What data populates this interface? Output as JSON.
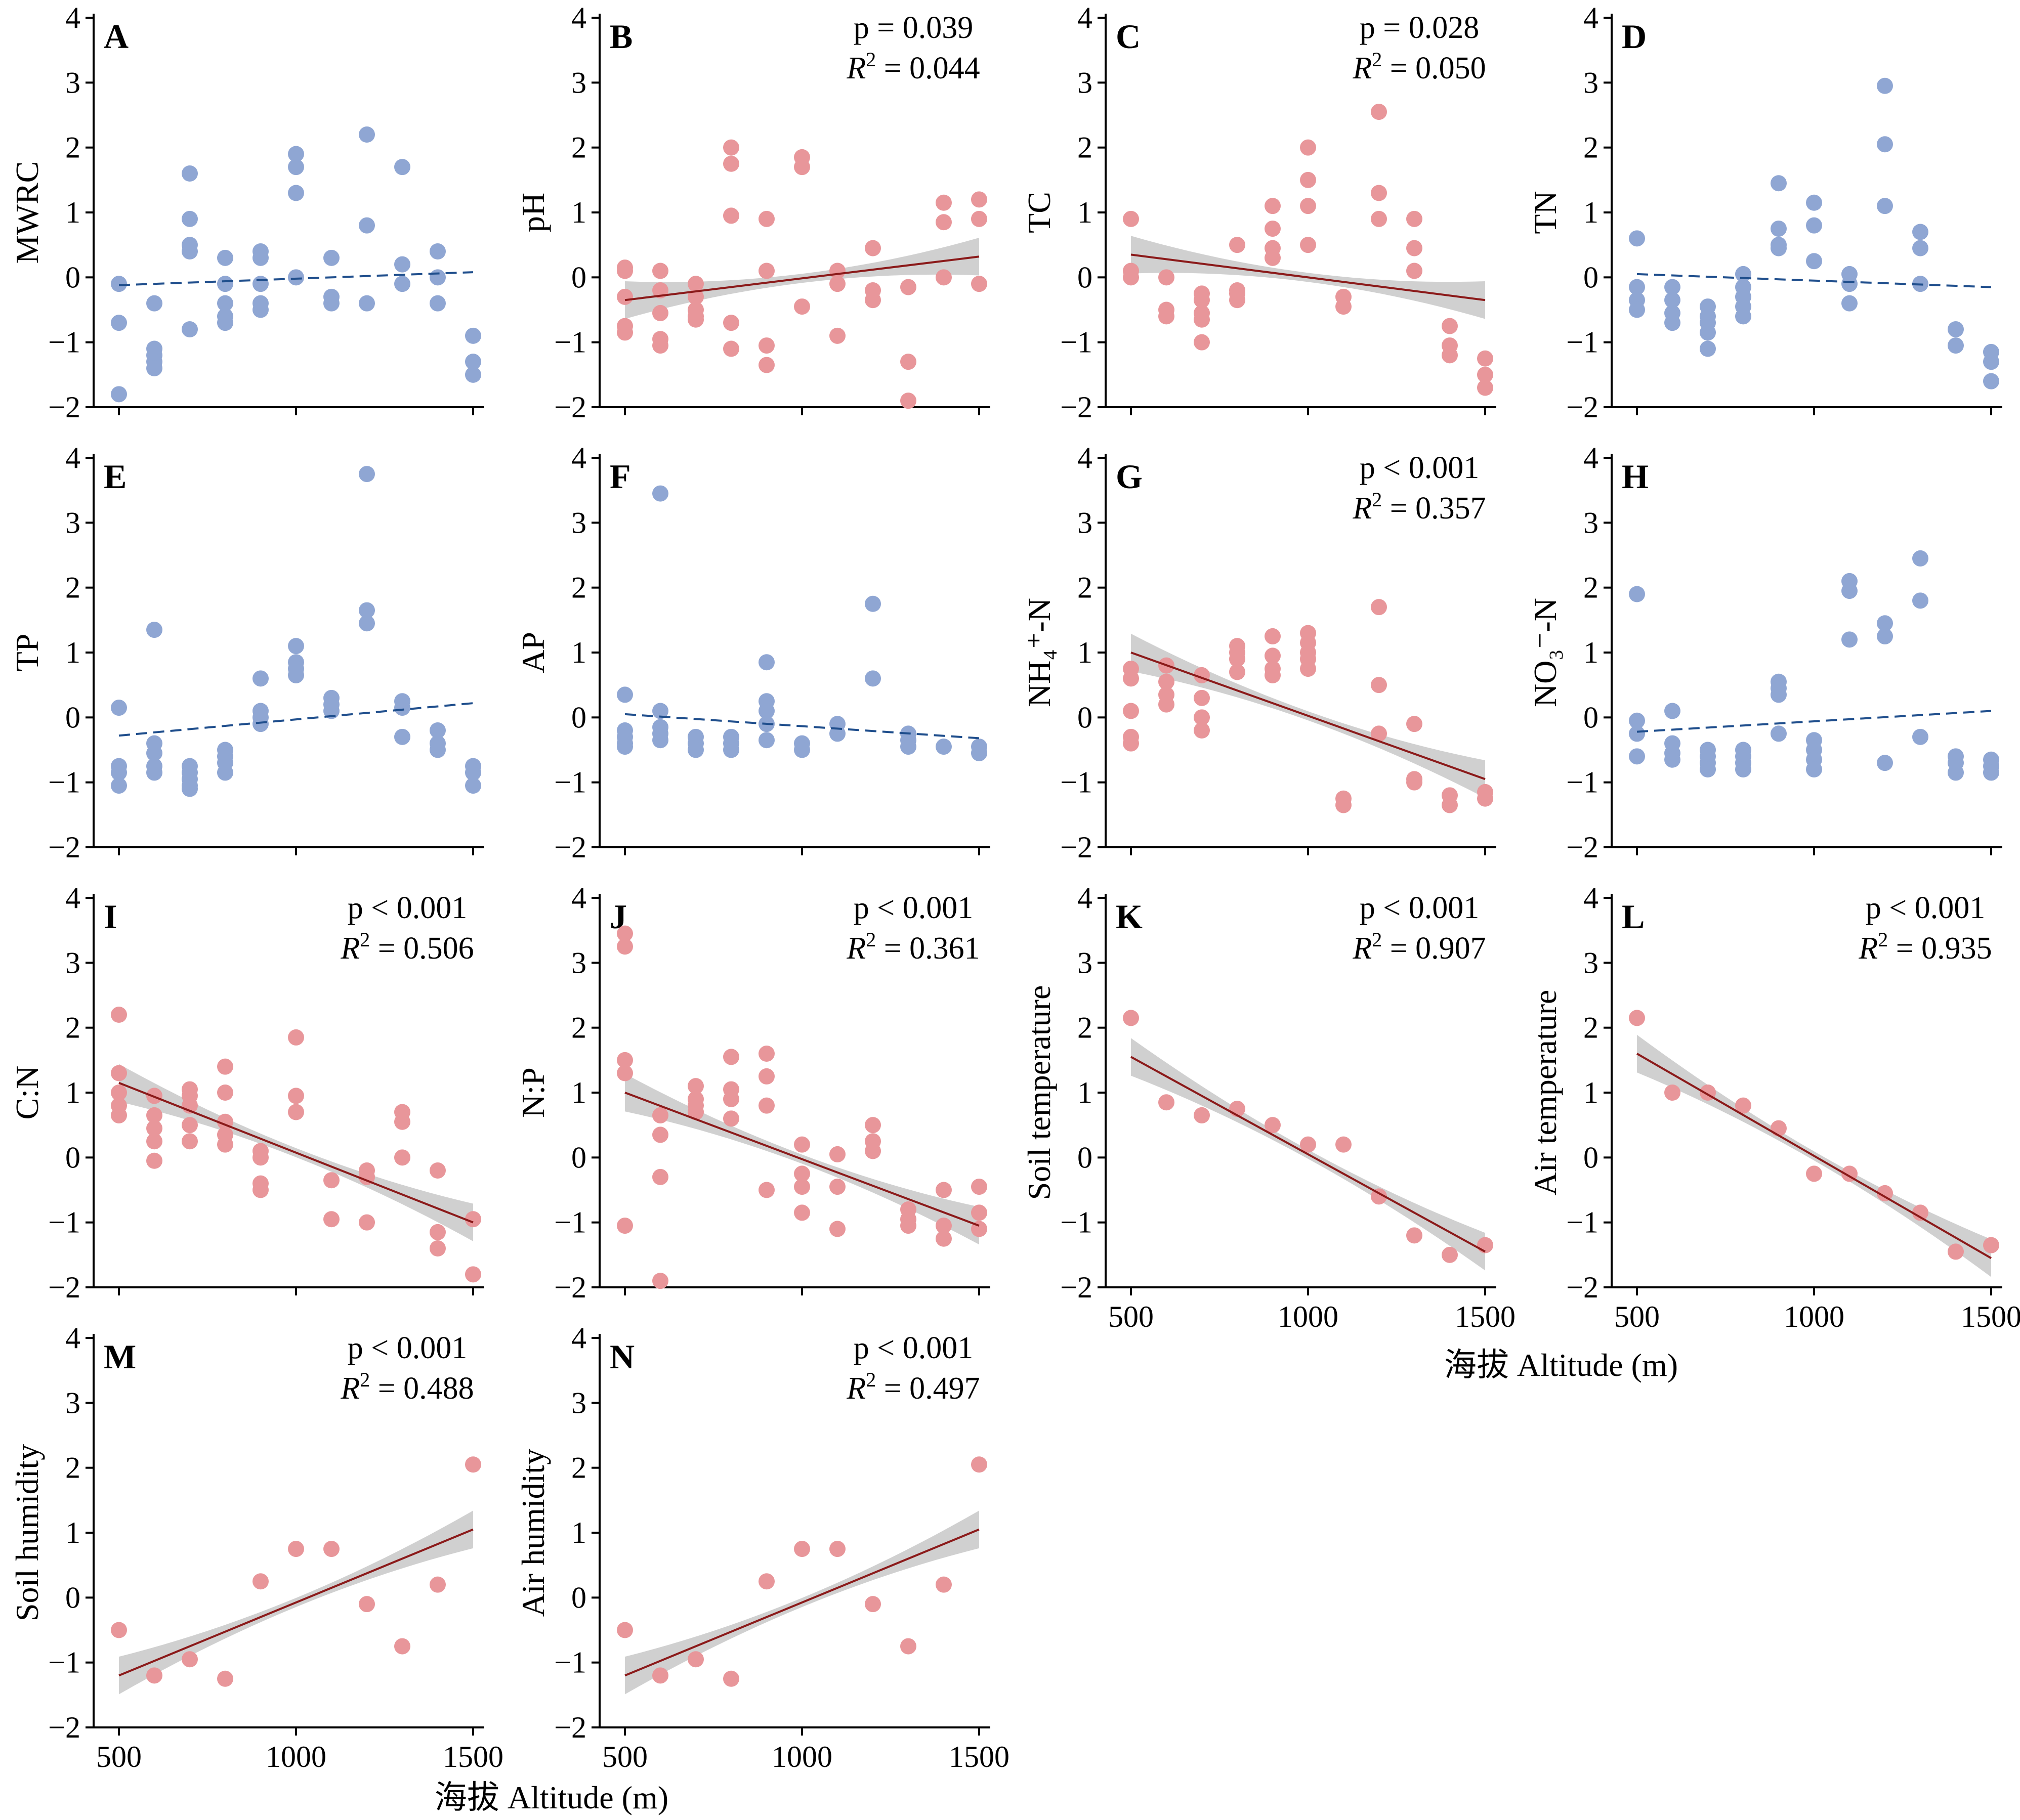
{
  "figure": {
    "x_axis_title": "海拔 Altitude (m)",
    "x_ticks": [
      "500",
      "1000",
      "1500"
    ],
    "y_ticks": [
      "4",
      "3",
      "2",
      "1",
      "0",
      "−1",
      "−2"
    ],
    "colors": {
      "significant_points": "#E8969A",
      "nonsignificant_points": "#8FA6D3",
      "fit_line": "#8B1A1A",
      "nonsignificant_fit_line": "#1F4E8C",
      "confidence_band": "#C8C8C8"
    }
  },
  "chart_data": [
    {
      "letter": "A",
      "ylabel": "MWRC",
      "type": "scatter",
      "significant": false,
      "xlim": [
        500,
        1500
      ],
      "ylim": [
        -2,
        4
      ],
      "fit": {
        "x": [
          500,
          1500
        ],
        "y": [
          -0.12,
          0.08
        ]
      },
      "x": [
        500,
        500,
        500,
        600,
        600,
        600,
        600,
        600,
        700,
        700,
        700,
        700,
        700,
        800,
        800,
        800,
        800,
        800,
        900,
        900,
        900,
        900,
        900,
        1000,
        1000,
        1000,
        1000,
        1100,
        1100,
        1100,
        1200,
        1200,
        1200,
        1300,
        1300,
        1300,
        1400,
        1400,
        1400,
        1500,
        1500,
        1500
      ],
      "y": [
        -0.1,
        -0.7,
        -1.8,
        -0.4,
        -1.1,
        -1.2,
        -1.3,
        -1.4,
        1.6,
        0.9,
        0.5,
        0.4,
        -0.8,
        0.3,
        -0.1,
        -0.4,
        -0.6,
        -0.7,
        0.4,
        0.3,
        -0.1,
        -0.4,
        -0.5,
        1.9,
        1.7,
        1.3,
        0.0,
        0.3,
        -0.3,
        -0.4,
        2.2,
        0.8,
        -0.4,
        1.7,
        0.2,
        -0.1,
        0.4,
        0.0,
        -0.4,
        -0.9,
        -1.3,
        -1.5
      ]
    },
    {
      "letter": "B",
      "ylabel": "pH",
      "type": "scatter",
      "significant": true,
      "p": "p = 0.039",
      "r2": "= 0.044",
      "xlim": [
        500,
        1500
      ],
      "ylim": [
        -2,
        4
      ],
      "fit": {
        "x": [
          500,
          1500
        ],
        "y": [
          -0.35,
          0.32
        ]
      },
      "x": [
        500,
        500,
        500,
        500,
        500,
        600,
        600,
        600,
        600,
        600,
        700,
        700,
        700,
        700,
        700,
        800,
        800,
        800,
        800,
        800,
        900,
        900,
        900,
        900,
        1000,
        1000,
        1000,
        1100,
        1100,
        1100,
        1200,
        1200,
        1200,
        1300,
        1300,
        1300,
        1400,
        1400,
        1400,
        1500,
        1500,
        1500
      ],
      "y": [
        0.15,
        0.1,
        -0.3,
        -0.75,
        -0.85,
        0.1,
        -0.2,
        -0.55,
        -0.95,
        -1.05,
        -0.1,
        -0.3,
        -0.5,
        -0.6,
        -0.65,
        2.0,
        1.75,
        0.95,
        -0.7,
        -1.1,
        0.9,
        0.1,
        -1.05,
        -1.35,
        1.85,
        1.7,
        -0.45,
        0.1,
        -0.1,
        -0.9,
        0.45,
        -0.2,
        -0.35,
        -0.15,
        -1.3,
        -1.9,
        1.15,
        0.85,
        0.0,
        1.2,
        0.9,
        -0.1
      ]
    },
    {
      "letter": "C",
      "ylabel": "TC",
      "type": "scatter",
      "significant": true,
      "p": "p = 0.028",
      "r2": "= 0.050",
      "xlim": [
        500,
        1500
      ],
      "ylim": [
        -2,
        4
      ],
      "fit": {
        "x": [
          500,
          1500
        ],
        "y": [
          0.35,
          -0.35
        ]
      },
      "x": [
        500,
        500,
        500,
        600,
        600,
        600,
        700,
        700,
        700,
        700,
        700,
        800,
        800,
        800,
        800,
        900,
        900,
        900,
        900,
        1000,
        1000,
        1000,
        1000,
        1100,
        1100,
        1200,
        1200,
        1200,
        1300,
        1300,
        1300,
        1400,
        1400,
        1400,
        1500,
        1500,
        1500
      ],
      "y": [
        0.9,
        0.1,
        0.0,
        0.0,
        -0.5,
        -0.6,
        -0.25,
        -0.35,
        -0.55,
        -0.65,
        -1.0,
        0.5,
        -0.2,
        -0.25,
        -0.35,
        1.1,
        0.75,
        0.45,
        0.3,
        2.0,
        1.5,
        1.1,
        0.5,
        -0.3,
        -0.45,
        2.55,
        1.3,
        0.9,
        0.9,
        0.45,
        0.1,
        -0.75,
        -1.05,
        -1.2,
        -1.25,
        -1.5,
        -1.7
      ]
    },
    {
      "letter": "D",
      "ylabel": "TN",
      "type": "scatter",
      "significant": false,
      "xlim": [
        500,
        1500
      ],
      "ylim": [
        -2,
        4
      ],
      "fit": {
        "x": [
          500,
          1500
        ],
        "y": [
          0.05,
          -0.15
        ]
      },
      "x": [
        500,
        500,
        500,
        500,
        600,
        600,
        600,
        600,
        700,
        700,
        700,
        700,
        700,
        800,
        800,
        800,
        800,
        800,
        900,
        900,
        900,
        900,
        1000,
        1000,
        1000,
        1100,
        1100,
        1100,
        1200,
        1200,
        1200,
        1300,
        1300,
        1300,
        1400,
        1400,
        1500,
        1500,
        1500
      ],
      "y": [
        0.6,
        -0.15,
        -0.35,
        -0.5,
        -0.15,
        -0.35,
        -0.55,
        -0.7,
        -0.45,
        -0.6,
        -0.7,
        -0.85,
        -1.1,
        0.05,
        -0.15,
        -0.3,
        -0.45,
        -0.6,
        1.45,
        0.75,
        0.5,
        0.45,
        1.15,
        0.8,
        0.25,
        0.05,
        -0.1,
        -0.4,
        2.95,
        2.05,
        1.1,
        0.7,
        0.45,
        -0.1,
        -0.8,
        -1.05,
        -1.15,
        -1.3,
        -1.6
      ]
    },
    {
      "letter": "E",
      "ylabel": "TP",
      "type": "scatter",
      "significant": false,
      "xlim": [
        500,
        1500
      ],
      "ylim": [
        -2,
        4
      ],
      "fit": {
        "x": [
          500,
          1500
        ],
        "y": [
          -0.28,
          0.22
        ]
      },
      "x": [
        500,
        500,
        500,
        500,
        600,
        600,
        600,
        600,
        600,
        700,
        700,
        700,
        700,
        700,
        800,
        800,
        800,
        800,
        900,
        900,
        900,
        900,
        1000,
        1000,
        1000,
        1000,
        1100,
        1100,
        1100,
        1200,
        1200,
        1200,
        1300,
        1300,
        1300,
        1400,
        1400,
        1400,
        1500,
        1500,
        1500
      ],
      "y": [
        0.15,
        -0.75,
        -0.85,
        -1.05,
        1.35,
        -0.4,
        -0.55,
        -0.75,
        -0.85,
        -0.75,
        -0.85,
        -0.95,
        -1.05,
        -1.1,
        -0.5,
        -0.6,
        -0.7,
        -0.85,
        0.6,
        0.1,
        0.0,
        -0.1,
        1.1,
        0.85,
        0.75,
        0.65,
        0.3,
        0.2,
        0.1,
        3.75,
        1.65,
        1.45,
        0.25,
        0.15,
        -0.3,
        -0.2,
        -0.4,
        -0.5,
        -0.75,
        -0.85,
        -1.05
      ]
    },
    {
      "letter": "F",
      "ylabel": "AP",
      "type": "scatter",
      "significant": false,
      "xlim": [
        500,
        1500
      ],
      "ylim": [
        -2,
        4
      ],
      "fit": {
        "x": [
          500,
          1500
        ],
        "y": [
          0.05,
          -0.32
        ]
      },
      "x": [
        500,
        500,
        500,
        500,
        500,
        600,
        600,
        600,
        600,
        600,
        700,
        700,
        700,
        800,
        800,
        800,
        900,
        900,
        900,
        900,
        900,
        1000,
        1000,
        1100,
        1100,
        1200,
        1200,
        1300,
        1300,
        1300,
        1400,
        1500,
        1500
      ],
      "y": [
        0.35,
        -0.2,
        -0.3,
        -0.4,
        -0.45,
        3.45,
        0.1,
        -0.15,
        -0.25,
        -0.35,
        -0.3,
        -0.4,
        -0.5,
        -0.3,
        -0.4,
        -0.5,
        0.85,
        0.25,
        0.1,
        -0.1,
        -0.35,
        -0.4,
        -0.5,
        -0.1,
        -0.25,
        1.75,
        0.6,
        -0.25,
        -0.35,
        -0.45,
        -0.45,
        -0.45,
        -0.55
      ]
    },
    {
      "letter": "G",
      "ylabel": "NH₄⁺-N",
      "type": "scatter",
      "significant": true,
      "p": "p < 0.001",
      "r2": "= 0.357",
      "xlim": [
        500,
        1500
      ],
      "ylim": [
        -2,
        4
      ],
      "fit": {
        "x": [
          500,
          1500
        ],
        "y": [
          1.0,
          -0.95
        ]
      },
      "x": [
        500,
        500,
        500,
        500,
        500,
        600,
        600,
        600,
        600,
        700,
        700,
        700,
        700,
        800,
        800,
        800,
        800,
        900,
        900,
        900,
        900,
        1000,
        1000,
        1000,
        1000,
        1000,
        1100,
        1100,
        1200,
        1200,
        1200,
        1300,
        1300,
        1300,
        1400,
        1400,
        1500,
        1500
      ],
      "y": [
        0.75,
        0.6,
        0.1,
        -0.3,
        -0.4,
        0.8,
        0.55,
        0.35,
        0.2,
        0.65,
        0.3,
        0.0,
        -0.2,
        1.1,
        1.0,
        0.9,
        0.7,
        1.25,
        0.95,
        0.75,
        0.65,
        1.3,
        1.15,
        1.0,
        0.9,
        0.75,
        -1.25,
        -1.35,
        1.7,
        0.5,
        -0.25,
        -0.1,
        -0.95,
        -1.0,
        -1.2,
        -1.35,
        -1.15,
        -1.25
      ]
    },
    {
      "letter": "H",
      "ylabel": "NO₃⁻-N",
      "type": "scatter",
      "significant": false,
      "xlim": [
        500,
        1500
      ],
      "ylim": [
        -2,
        4
      ],
      "fit": {
        "x": [
          500,
          1500
        ],
        "y": [
          -0.22,
          0.1
        ]
      },
      "x": [
        500,
        500,
        500,
        500,
        600,
        600,
        600,
        600,
        700,
        700,
        700,
        700,
        800,
        800,
        800,
        800,
        900,
        900,
        900,
        900,
        1000,
        1000,
        1000,
        1000,
        1100,
        1100,
        1100,
        1200,
        1200,
        1200,
        1300,
        1300,
        1300,
        1400,
        1400,
        1400,
        1500,
        1500,
        1500
      ],
      "y": [
        1.9,
        -0.05,
        -0.25,
        -0.6,
        0.1,
        -0.4,
        -0.55,
        -0.65,
        -0.5,
        -0.6,
        -0.7,
        -0.8,
        -0.5,
        -0.6,
        -0.7,
        -0.8,
        0.55,
        0.45,
        0.35,
        -0.25,
        -0.35,
        -0.5,
        -0.65,
        -0.8,
        2.1,
        1.95,
        1.2,
        1.45,
        1.25,
        -0.7,
        2.45,
        1.8,
        -0.3,
        -0.6,
        -0.7,
        -0.85,
        -0.65,
        -0.75,
        -0.85
      ]
    },
    {
      "letter": "I",
      "ylabel": "C:N",
      "type": "scatter",
      "significant": true,
      "p": "p < 0.001",
      "r2": "= 0.506",
      "xlim": [
        500,
        1500
      ],
      "ylim": [
        -2,
        4
      ],
      "fit": {
        "x": [
          500,
          1500
        ],
        "y": [
          1.15,
          -1.0
        ]
      },
      "x": [
        500,
        500,
        500,
        500,
        500,
        600,
        600,
        600,
        600,
        600,
        700,
        700,
        700,
        700,
        700,
        800,
        800,
        800,
        800,
        800,
        900,
        900,
        900,
        900,
        1000,
        1000,
        1000,
        1100,
        1100,
        1200,
        1200,
        1200,
        1300,
        1300,
        1300,
        1400,
        1400,
        1400,
        1500,
        1500
      ],
      "y": [
        2.2,
        1.3,
        1.0,
        0.8,
        0.65,
        0.95,
        0.65,
        0.45,
        0.25,
        -0.05,
        1.05,
        0.95,
        0.8,
        0.5,
        0.25,
        1.4,
        1.0,
        0.55,
        0.35,
        0.2,
        0.1,
        0.0,
        -0.4,
        -0.5,
        1.85,
        0.95,
        0.7,
        -0.35,
        -0.95,
        -0.2,
        -0.3,
        -1.0,
        0.7,
        0.55,
        0.0,
        -0.2,
        -1.15,
        -1.4,
        -0.95,
        -1.8
      ]
    },
    {
      "letter": "J",
      "ylabel": "N:P",
      "type": "scatter",
      "significant": true,
      "p": "p < 0.001",
      "r2": "= 0.361",
      "xlim": [
        500,
        1500
      ],
      "ylim": [
        -2,
        4
      ],
      "fit": {
        "x": [
          500,
          1500
        ],
        "y": [
          1.0,
          -1.05
        ]
      },
      "x": [
        500,
        500,
        500,
        500,
        500,
        600,
        600,
        600,
        600,
        700,
        700,
        700,
        700,
        800,
        800,
        800,
        800,
        900,
        900,
        900,
        900,
        1000,
        1000,
        1000,
        1000,
        1100,
        1100,
        1100,
        1200,
        1200,
        1200,
        1300,
        1300,
        1300,
        1400,
        1400,
        1400,
        1500,
        1500,
        1500
      ],
      "y": [
        3.45,
        3.25,
        1.5,
        1.3,
        -1.05,
        0.65,
        0.35,
        -0.3,
        -1.9,
        1.1,
        0.9,
        0.8,
        0.7,
        1.55,
        1.05,
        0.9,
        0.6,
        1.6,
        1.25,
        0.8,
        -0.5,
        0.2,
        -0.25,
        -0.45,
        -0.85,
        0.05,
        -0.45,
        -1.1,
        0.5,
        0.25,
        0.1,
        -0.8,
        -0.95,
        -1.05,
        -0.5,
        -1.05,
        -1.25,
        -0.45,
        -0.85,
        -1.1
      ]
    },
    {
      "letter": "K",
      "ylabel": "Soil temperature",
      "type": "scatter",
      "significant": true,
      "p": "p < 0.001",
      "r2": "= 0.907",
      "xlim": [
        500,
        1500
      ],
      "ylim": [
        -2,
        4
      ],
      "fit": {
        "x": [
          500,
          1500
        ],
        "y": [
          1.55,
          -1.45
        ]
      },
      "x": [
        500,
        600,
        700,
        800,
        900,
        1000,
        1100,
        1200,
        1300,
        1400,
        1500
      ],
      "y": [
        2.15,
        0.85,
        0.65,
        0.75,
        0.5,
        0.2,
        0.2,
        -0.6,
        -1.2,
        -1.5,
        -1.35
      ]
    },
    {
      "letter": "L",
      "ylabel": "Air temperature",
      "type": "scatter",
      "significant": true,
      "p": "p < 0.001",
      "r2": "= 0.935",
      "xlim": [
        500,
        1500
      ],
      "ylim": [
        -2,
        4
      ],
      "fit": {
        "x": [
          500,
          1500
        ],
        "y": [
          1.6,
          -1.55
        ]
      },
      "x": [
        500,
        600,
        700,
        800,
        900,
        1000,
        1100,
        1200,
        1300,
        1400,
        1500
      ],
      "y": [
        2.15,
        1.0,
        1.0,
        0.8,
        0.45,
        -0.25,
        -0.25,
        -0.55,
        -0.85,
        -1.45,
        -1.35
      ]
    },
    {
      "letter": "M",
      "ylabel": "Soil humidity",
      "type": "scatter",
      "significant": true,
      "p": "p < 0.001",
      "r2": "= 0.488",
      "xlim": [
        500,
        1500
      ],
      "ylim": [
        -2,
        4
      ],
      "fit": {
        "x": [
          500,
          1500
        ],
        "y": [
          -1.2,
          1.05
        ]
      },
      "x": [
        500,
        600,
        700,
        800,
        900,
        1000,
        1100,
        1200,
        1300,
        1400,
        1500
      ],
      "y": [
        -0.5,
        -1.2,
        -0.95,
        -1.25,
        0.25,
        0.75,
        0.75,
        -0.1,
        -0.75,
        0.2,
        2.05
      ]
    },
    {
      "letter": "N",
      "ylabel": "Air humidity",
      "type": "scatter",
      "significant": true,
      "p": "p < 0.001",
      "r2": "= 0.497",
      "xlim": [
        500,
        1500
      ],
      "ylim": [
        -2,
        4
      ],
      "fit": {
        "x": [
          500,
          1500
        ],
        "y": [
          -1.2,
          1.05
        ]
      },
      "x": [
        500,
        600,
        700,
        800,
        900,
        1000,
        1100,
        1200,
        1300,
        1400,
        1500
      ],
      "y": [
        -0.5,
        -1.2,
        -0.95,
        -1.25,
        0.25,
        0.75,
        0.75,
        -0.1,
        -0.75,
        0.2,
        2.05
      ]
    }
  ]
}
